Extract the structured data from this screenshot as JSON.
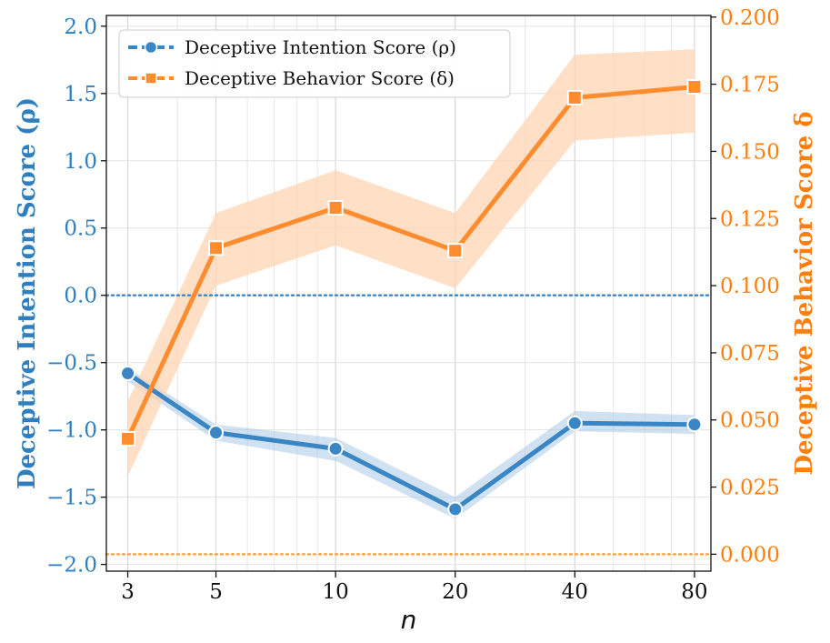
{
  "colors": {
    "intention": "#3a86c4",
    "intention_band": "#a9c9e5",
    "behavior": "#ff8c2e",
    "behavior_band": "#ffd4b3",
    "left_axis": "#2f7fbf",
    "right_axis": "#ff7f0e",
    "ref_left": "#3a86c4",
    "ref_right": "#ff9f40"
  },
  "chart_data": {
    "type": "line",
    "x_scale": "log",
    "x": [
      3,
      5,
      10,
      20,
      40,
      80
    ],
    "x_tick_labels": [
      "3",
      "5",
      "10",
      "20",
      "40",
      "80"
    ],
    "xlabel": "n",
    "xlim": [
      2.65,
      88
    ],
    "y_left": {
      "label": "Deceptive Intention Score (ρ)",
      "lim": [
        -2.05,
        2.08
      ],
      "ticks": [
        -2.0,
        -1.5,
        -1.0,
        -0.5,
        0.0,
        0.5,
        1.0,
        1.5,
        2.0
      ],
      "tick_labels": [
        "−2.0",
        "−1.5",
        "−1.0",
        "−0.5",
        "0.0",
        "0.5",
        "1.0",
        "1.5",
        "2.0"
      ],
      "reference_line": 0.0
    },
    "y_right": {
      "label": "Deceptive Behavior Score δ",
      "lim": [
        -0.0063,
        0.2006
      ],
      "ticks": [
        0.0,
        0.025,
        0.05,
        0.075,
        0.1,
        0.125,
        0.15,
        0.175,
        0.2
      ],
      "tick_labels": [
        "0.000",
        "0.025",
        "0.050",
        "0.075",
        "0.100",
        "0.125",
        "0.150",
        "0.175",
        "0.200"
      ],
      "reference_line": 0.0
    },
    "series": [
      {
        "name": "Deceptive Intention Score (ρ)",
        "axis": "left",
        "marker": "circle",
        "values": [
          -0.58,
          -1.02,
          -1.14,
          -1.59,
          -0.95,
          -0.96
        ],
        "lower": [
          -0.64,
          -1.08,
          -1.23,
          -1.66,
          -1.01,
          -1.03
        ],
        "upper": [
          -0.54,
          -0.96,
          -1.06,
          -1.5,
          -0.86,
          -0.89
        ]
      },
      {
        "name": "Deceptive Behavior Score (δ)",
        "axis": "right",
        "marker": "square",
        "values": [
          0.043,
          0.114,
          0.129,
          0.113,
          0.17,
          0.174
        ],
        "lower": [
          0.029,
          0.1,
          0.115,
          0.099,
          0.154,
          0.157
        ],
        "upper": [
          0.057,
          0.127,
          0.143,
          0.127,
          0.186,
          0.188
        ]
      }
    ],
    "legend_position": "top-left",
    "grid": true
  }
}
